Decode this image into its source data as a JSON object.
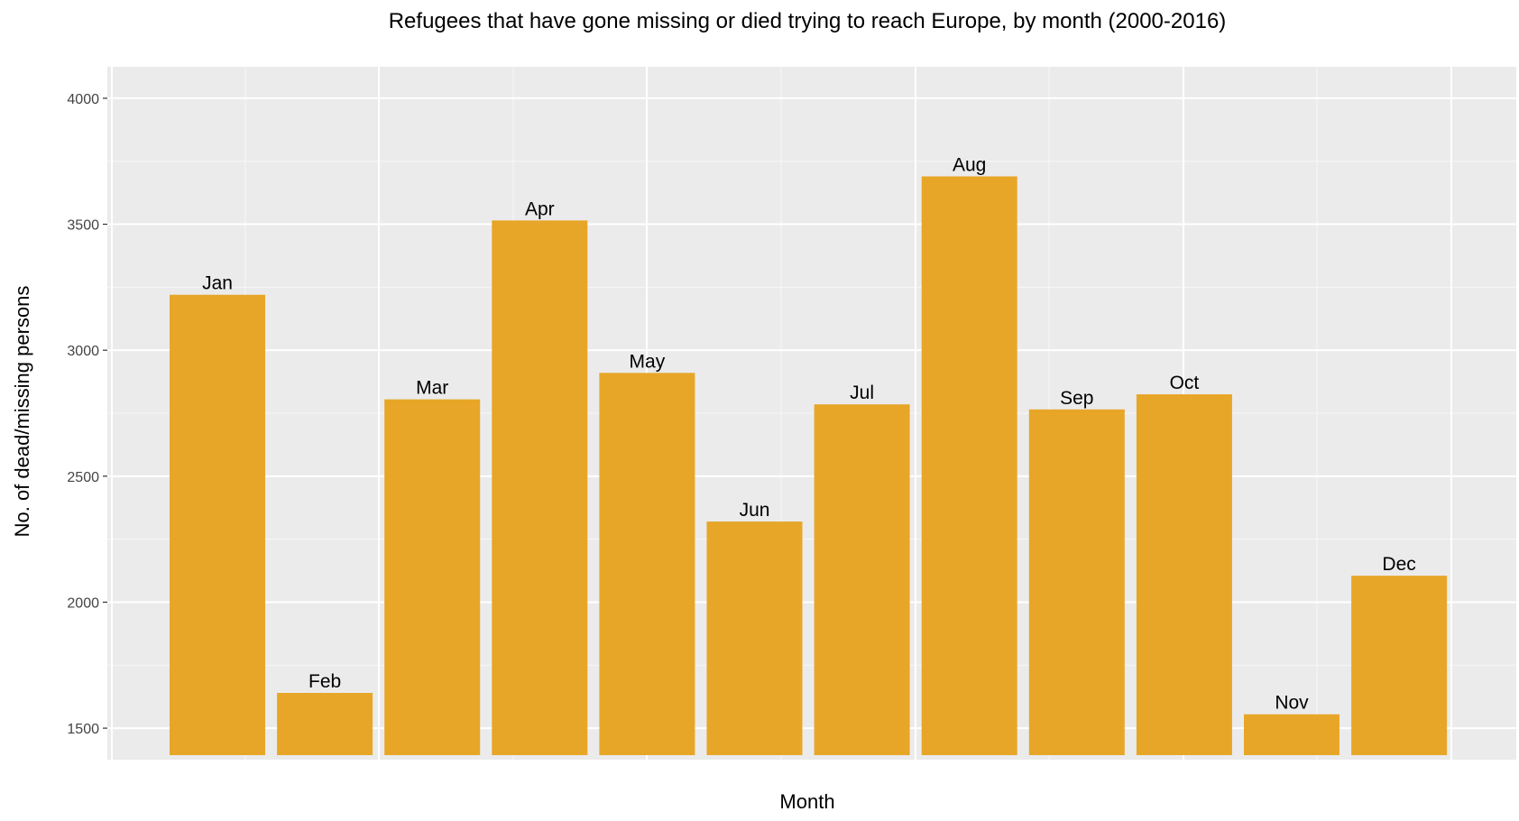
{
  "chart_data": {
    "type": "bar",
    "title": "Refugees that have gone missing or died trying to reach Europe, by month (2000-2016)",
    "xlabel": "Month",
    "ylabel": "No. of dead/missing persons",
    "categories": [
      "Jan",
      "Feb",
      "Mar",
      "Apr",
      "May",
      "Jun",
      "Jul",
      "Aug",
      "Sep",
      "Oct",
      "Nov",
      "Dec"
    ],
    "values": [
      3220,
      1640,
      2805,
      3515,
      2910,
      2320,
      2785,
      3690,
      2765,
      2825,
      1555,
      2105
    ],
    "ylim": [
      1375,
      4125
    ],
    "yticks": [
      1500,
      2000,
      2500,
      3000,
      3500,
      4000
    ],
    "ytick_labels": [
      "1500",
      "2000",
      "2500",
      "3000",
      "3500",
      "4000"
    ],
    "bar_labels_above": true,
    "grid": true,
    "colors": {
      "bar": "#E8A628",
      "panel_background": "#EBEBEB",
      "grid_major": "#FFFFFF"
    }
  }
}
